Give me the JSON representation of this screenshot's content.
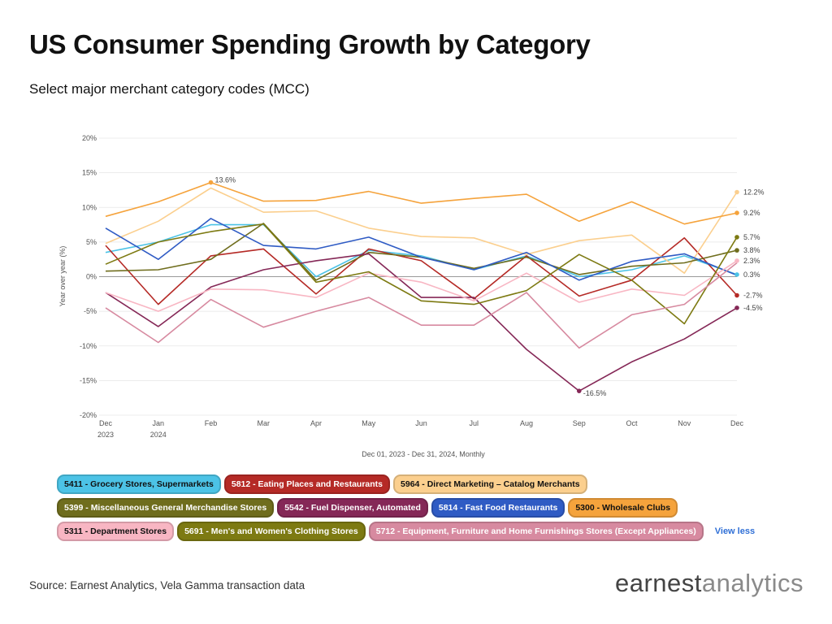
{
  "header": {
    "title": "US Consumer Spending Growth by Category",
    "subtitle": "Select major merchant category codes (MCC)"
  },
  "chart_data": {
    "type": "line",
    "ylabel": "Year over year (%)",
    "xlabel": "Dec 01, 2023 - Dec 31, 2024, Monthly",
    "ylim": [
      -20,
      20
    ],
    "yticks": [
      "20%",
      "15%",
      "10%",
      "5%",
      "0%",
      "-5%",
      "-10%",
      "-15%",
      "-20%"
    ],
    "ytick_values": [
      20,
      15,
      10,
      5,
      0,
      -5,
      -10,
      -15,
      -20
    ],
    "x": [
      "Dec",
      "Jan",
      "Feb",
      "Mar",
      "Apr",
      "May",
      "Jun",
      "Jul",
      "Aug",
      "Sep",
      "Oct",
      "Nov",
      "Dec"
    ],
    "x_sub": [
      "2023",
      "2024",
      "",
      "",
      "",
      "",
      "",
      "",
      "",
      "",
      "",
      "",
      ""
    ],
    "grid": "horizontal",
    "series": [
      {
        "name": "5411 - Grocery Stores, Supermarkets",
        "color": "#4cc3e6",
        "text_color": "#111111",
        "values": [
          3.5,
          5.0,
          7.5,
          7.5,
          0.0,
          3.8,
          3.0,
          1.0,
          3.0,
          0.0,
          1.0,
          3.0,
          0.3
        ],
        "end_label": "0.3%"
      },
      {
        "name": "5812 - Eating Places and Restaurants",
        "color": "#b52a26",
        "text_color": "#ffffff",
        "values": [
          4.5,
          -4.0,
          3.0,
          4.0,
          -2.5,
          4.0,
          2.3,
          -3.2,
          3.0,
          -2.8,
          -0.5,
          5.6,
          -2.7
        ],
        "end_label": "-2.7%"
      },
      {
        "name": "5964 - Direct Marketing – Catalog Merchants",
        "color": "#fbcf8e",
        "text_color": "#111111",
        "values": [
          4.8,
          8.0,
          12.8,
          9.3,
          9.5,
          7.0,
          5.8,
          5.6,
          3.2,
          5.2,
          6.0,
          0.5,
          12.2
        ],
        "end_label": "12.2%"
      },
      {
        "name": "5399 - Miscellaneous General Merchandise Stores",
        "color": "#6f6d1d",
        "text_color": "#ffffff",
        "values": [
          0.8,
          1.0,
          2.5,
          7.7,
          -0.5,
          3.5,
          2.8,
          1.2,
          2.8,
          0.3,
          1.5,
          2.0,
          3.8
        ],
        "end_label": "3.8%"
      },
      {
        "name": "5542 - Fuel Dispenser, Automated",
        "color": "#852857",
        "text_color": "#ffffff",
        "values": [
          -2.3,
          -7.2,
          -1.5,
          1.0,
          2.3,
          3.3,
          -3.0,
          -3.0,
          -10.5,
          -16.5,
          -12.3,
          -9.0,
          -4.5
        ],
        "end_label": "-4.5%",
        "point_label": {
          "index": 9,
          "text": "-16.5%"
        }
      },
      {
        "name": "5814 - Fast Food Restaurants",
        "color": "#2f5bc4",
        "text_color": "#ffffff",
        "values": [
          7.0,
          2.5,
          8.4,
          4.5,
          4.0,
          5.7,
          2.8,
          1.0,
          3.5,
          -0.5,
          2.2,
          3.3,
          0.2
        ],
        "end_label": ""
      },
      {
        "name": "5300 - Wholesale Clubs",
        "color": "#f5a33c",
        "text_color": "#111111",
        "values": [
          8.7,
          10.8,
          13.6,
          10.9,
          11.0,
          12.3,
          10.6,
          11.3,
          11.9,
          8.0,
          10.8,
          7.6,
          9.2
        ],
        "end_label": "9.2%",
        "point_label": {
          "index": 2,
          "text": "13.6%"
        }
      },
      {
        "name": "5311 - Department Stores",
        "color": "#f8b6c3",
        "text_color": "#111111",
        "values": [
          -2.3,
          -5.0,
          -1.8,
          -1.9,
          -3.0,
          0.5,
          -0.8,
          -3.5,
          0.5,
          -3.7,
          -1.8,
          -2.7,
          2.3
        ],
        "end_label": "2.3%"
      },
      {
        "name": "5691 - Men's and Women's Clothing Stores",
        "color": "#7d7a12",
        "text_color": "#ffffff",
        "values": [
          1.8,
          5.0,
          6.5,
          7.6,
          -0.8,
          0.7,
          -3.5,
          -4.0,
          -2.0,
          3.2,
          -0.5,
          -6.8,
          5.7
        ],
        "end_label": "5.7%"
      },
      {
        "name": "5712 - Equipment, Furniture and Home Furnishings Stores (Except Appliances)",
        "color": "#d78aa0",
        "text_color": "#ffffff",
        "values": [
          -4.5,
          -9.5,
          -3.3,
          -7.3,
          -5.0,
          -3.0,
          -7.0,
          -7.0,
          -2.3,
          -10.3,
          -5.5,
          -4.0,
          2.0
        ],
        "end_label": ""
      }
    ]
  },
  "legend": {
    "view_less_label": "View less"
  },
  "footer": {
    "source": "Source: Earnest Analytics, Vela Gamma transaction data",
    "brand_left": "earnest",
    "brand_right": "analytics"
  }
}
